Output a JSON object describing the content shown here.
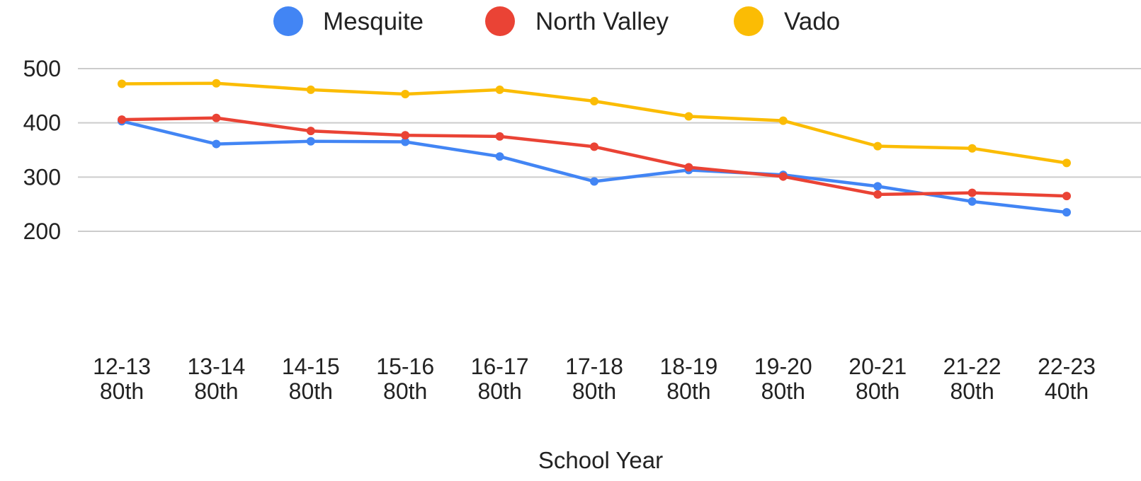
{
  "chart_data": {
    "type": "line",
    "title": "",
    "xlabel": "School Year",
    "ylabel": "",
    "categories": [
      [
        "12-13",
        "80th"
      ],
      [
        "13-14",
        "80th"
      ],
      [
        "14-15",
        "80th"
      ],
      [
        "15-16",
        "80th"
      ],
      [
        "16-17",
        "80th"
      ],
      [
        "17-18",
        "80th"
      ],
      [
        "18-19",
        "80th"
      ],
      [
        "19-20",
        "80th"
      ],
      [
        "20-21",
        "80th"
      ],
      [
        "21-22",
        "80th"
      ],
      [
        "22-23",
        "40th"
      ]
    ],
    "yticks": [
      "200",
      "300",
      "400",
      "500"
    ],
    "ylim": [
      200,
      500
    ],
    "grid": true,
    "legend_position": "top",
    "series": [
      {
        "name": "Mesquite",
        "color": "#4285f4",
        "values": [
          403,
          361,
          366,
          365,
          338,
          292,
          313,
          304,
          283,
          255,
          235
        ]
      },
      {
        "name": "North Valley",
        "color": "#ea4335",
        "values": [
          406,
          409,
          385,
          377,
          375,
          356,
          318,
          301,
          268,
          271,
          265
        ]
      },
      {
        "name": "Vado",
        "color": "#fbbc04",
        "values": [
          472,
          473,
          461,
          453,
          461,
          440,
          412,
          404,
          357,
          353,
          326
        ]
      }
    ]
  }
}
